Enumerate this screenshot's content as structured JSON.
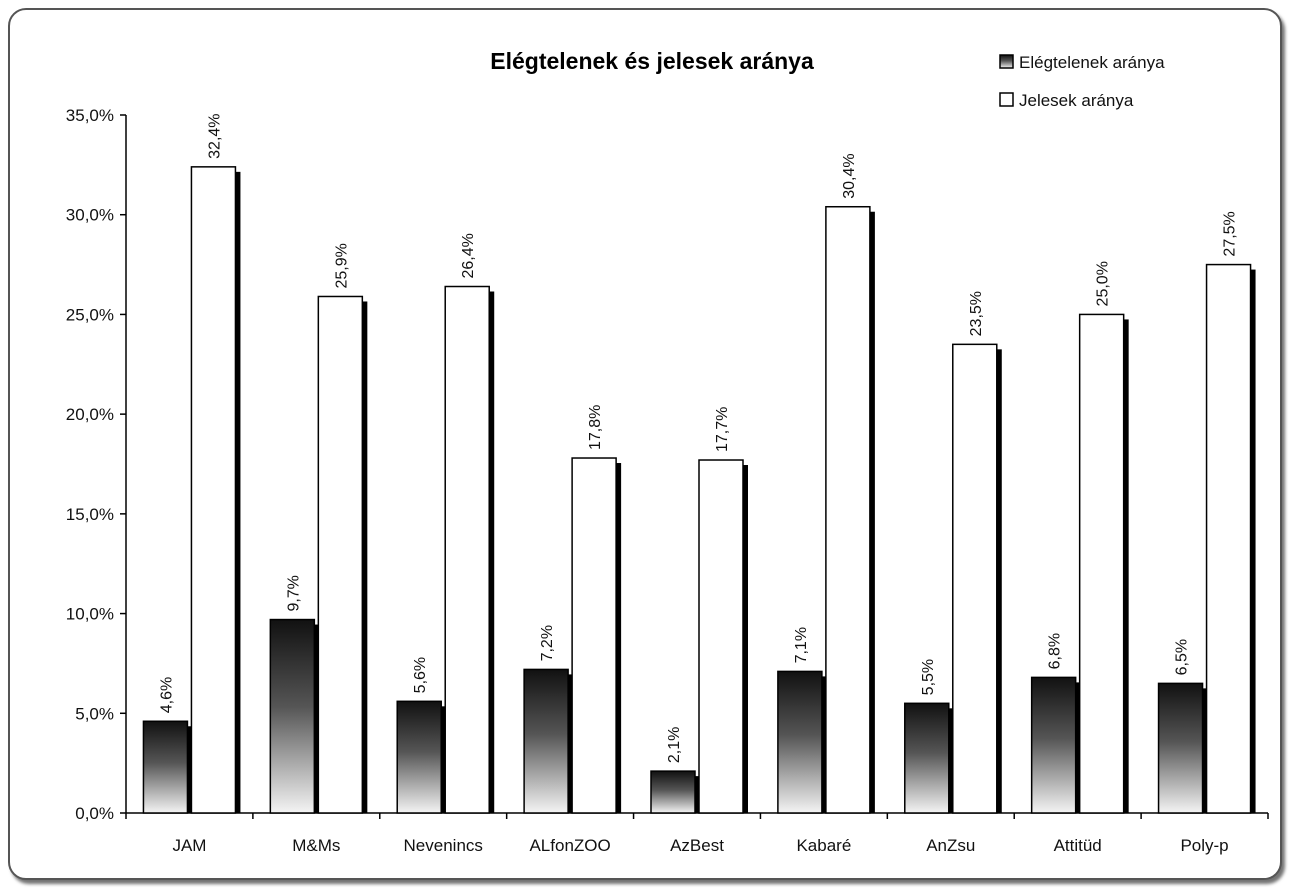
{
  "chart_data": {
    "type": "bar",
    "title": "Elégtelenek és jelesek aránya",
    "xlabel": "",
    "ylabel": "",
    "ylim": [
      0,
      35
    ],
    "y_ticks": [
      "0,0%",
      "5,0%",
      "10,0%",
      "15,0%",
      "20,0%",
      "25,0%",
      "30,0%",
      "35,0%"
    ],
    "categories": [
      "JAM",
      "M&Ms",
      "Nevenincs",
      "ALfonZOO",
      "AzBest",
      "Kabaré",
      "AnZsu",
      "Attitüd",
      "Poly-p"
    ],
    "series": [
      {
        "name": "Elégtelenek aránya",
        "values": [
          4.6,
          9.7,
          5.6,
          7.2,
          2.1,
          7.1,
          5.5,
          6.8,
          6.5
        ],
        "labels": [
          "4,6%",
          "9,7%",
          "5,6%",
          "7,2%",
          "2,1%",
          "7,1%",
          "5,5%",
          "6,8%",
          "6,5%"
        ],
        "color": "#1a1a1a"
      },
      {
        "name": "Jelesek aránya",
        "values": [
          32.4,
          25.9,
          26.4,
          17.8,
          17.7,
          30.4,
          23.5,
          25.0,
          27.5
        ],
        "labels": [
          "32,4%",
          "25,9%",
          "26,4%",
          "17,8%",
          "17,7%",
          "30,4%",
          "23,5%",
          "25,0%",
          "27,5%"
        ],
        "color": "#ffffff"
      }
    ],
    "grid": false,
    "legend": "top-right"
  }
}
